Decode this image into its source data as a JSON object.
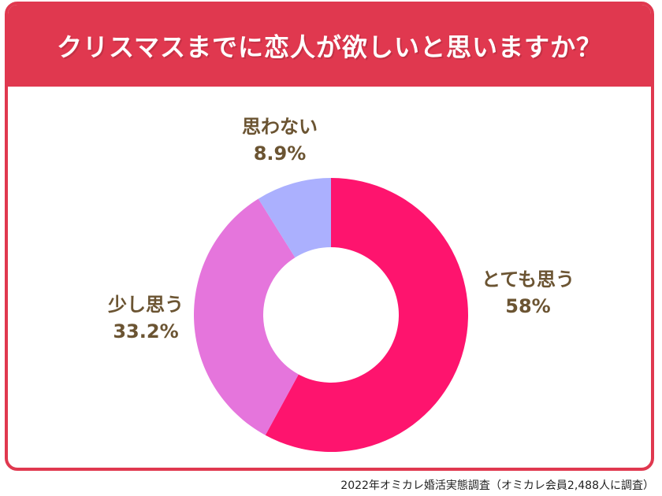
{
  "header": {
    "title": "クリスマスまでに恋人が欲しいと思いますか？"
  },
  "footer": {
    "source": "2022年オミカレ婚活実態調査（オミカレ会員2,488人に調査）"
  },
  "chart_data": {
    "type": "pie",
    "subtype": "donut",
    "title": "クリスマスまでに恋人が欲しいと思いますか？",
    "slices": [
      {
        "label": "とても思う",
        "value": 58,
        "display": "58%",
        "color": "#fe146e"
      },
      {
        "label": "少し思う",
        "value": 33.2,
        "display": "33.2%",
        "color": "#e575dc"
      },
      {
        "label": "思わない",
        "value": 8.9,
        "display": "8.9%",
        "color": "#abb0fe"
      }
    ],
    "legend": "none"
  }
}
